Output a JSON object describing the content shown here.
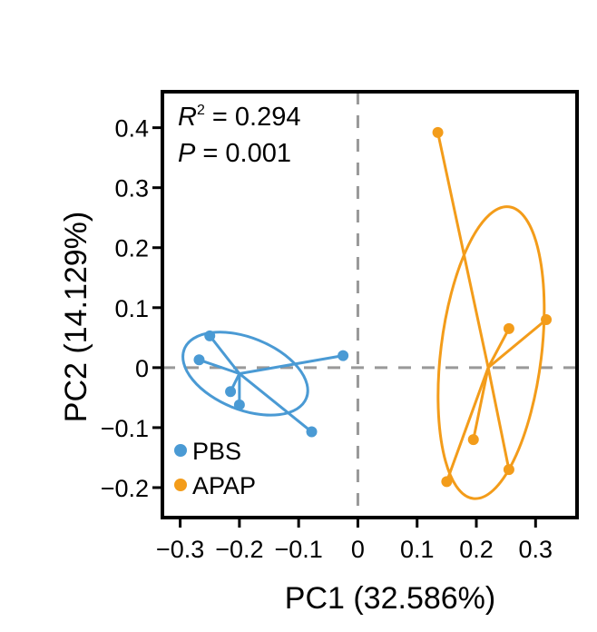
{
  "chart_data": {
    "type": "scatter",
    "xlabel": "PC1 (32.586%)",
    "ylabel": "PC2 (14.129%)",
    "xlim": [
      -0.33,
      0.37
    ],
    "ylim": [
      -0.25,
      0.46
    ],
    "xticks": [
      {
        "value": -0.3,
        "label": "−0.3"
      },
      {
        "value": -0.2,
        "label": "−0.2"
      },
      {
        "value": -0.1,
        "label": "−0.1"
      },
      {
        "value": 0,
        "label": "0"
      },
      {
        "value": 0.1,
        "label": "0.1"
      },
      {
        "value": 0.2,
        "label": "0.2"
      },
      {
        "value": 0.3,
        "label": "0.3"
      }
    ],
    "yticks": [
      {
        "value": 0.4,
        "label": "0.4"
      },
      {
        "value": 0.3,
        "label": "0.3"
      },
      {
        "value": 0.2,
        "label": "0.2"
      },
      {
        "value": 0.1,
        "label": "0.1"
      },
      {
        "value": 0,
        "label": "0"
      },
      {
        "value": -0.1,
        "label": "−0.1"
      },
      {
        "value": -0.2,
        "label": "−0.2"
      }
    ],
    "reference_lines": {
      "x": 0,
      "y": 0,
      "style": "dashed",
      "color": "#999999"
    },
    "annotations": {
      "r2_label": "R",
      "r2_sup": "2",
      "r2_value": " = 0.294",
      "p_label": "P",
      "p_value": " = 0.001"
    },
    "legend_position": "bottom-left",
    "series": [
      {
        "name": "PBS",
        "color": "#4a9ad4",
        "centroid": [
          -0.2,
          -0.01
        ],
        "points": [
          [
            -0.25,
            0.053
          ],
          [
            -0.268,
            0.013
          ],
          [
            -0.215,
            -0.04
          ],
          [
            -0.2,
            -0.062
          ],
          [
            -0.078,
            -0.107
          ],
          [
            -0.025,
            0.02
          ]
        ],
        "ellipse": {
          "center": [
            -0.19,
            -0.01
          ],
          "rx": 0.111,
          "ry": 0.06,
          "angle_deg": 22
        }
      },
      {
        "name": "APAP",
        "color": "#f39c1a",
        "centroid": [
          0.22,
          0.0
        ],
        "points": [
          [
            0.135,
            0.392
          ],
          [
            0.255,
            0.065
          ],
          [
            0.318,
            0.08
          ],
          [
            0.195,
            -0.12
          ],
          [
            0.15,
            -0.19
          ],
          [
            0.255,
            -0.17
          ]
        ],
        "ellipse": {
          "center": [
            0.225,
            0.025
          ],
          "rx": 0.085,
          "ry": 0.245,
          "angle_deg": 7
        }
      }
    ]
  }
}
